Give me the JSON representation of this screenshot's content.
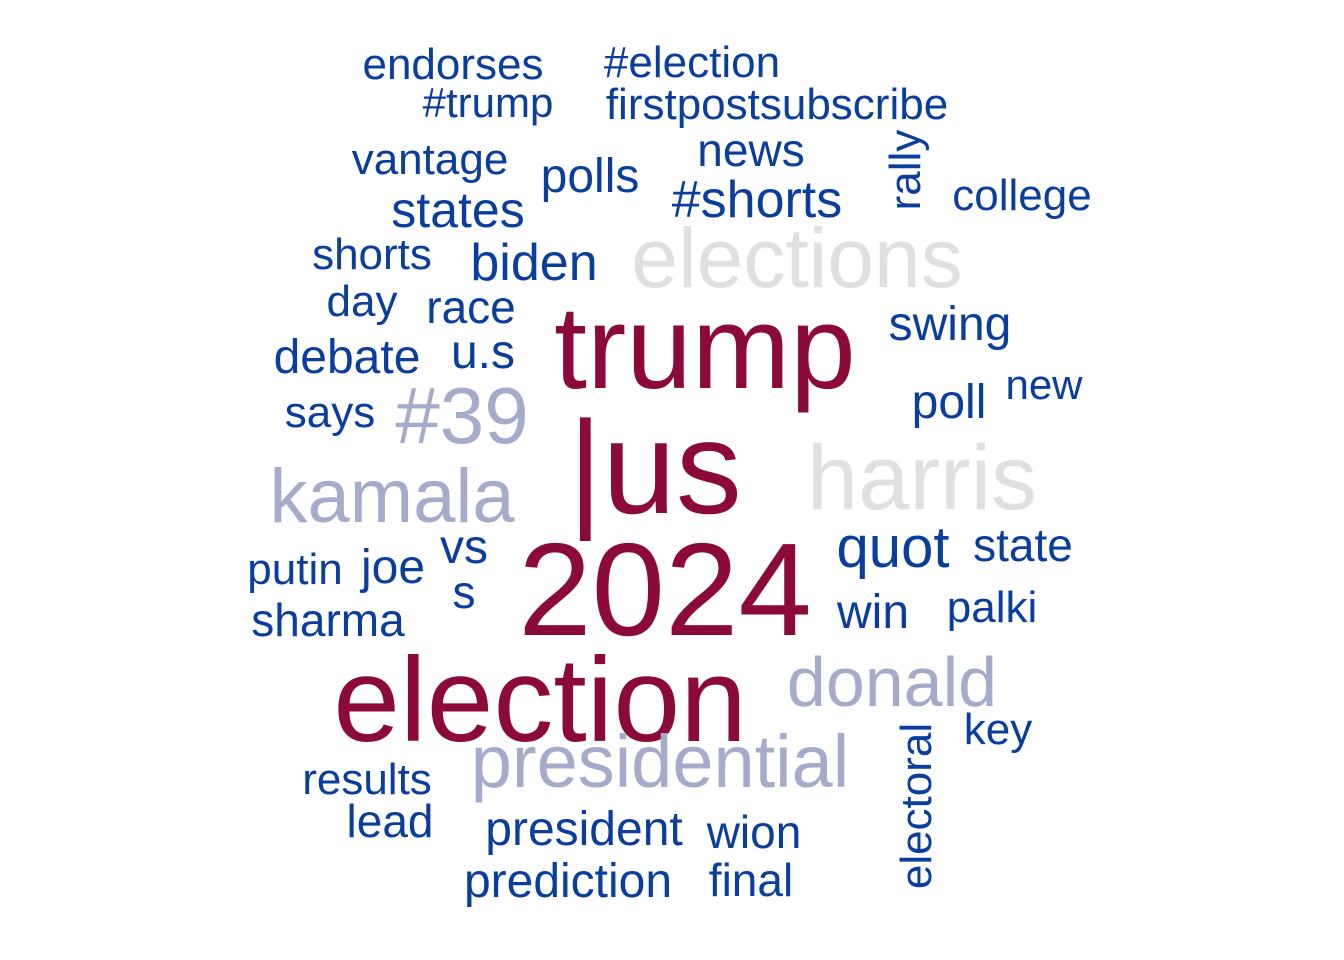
{
  "colors": {
    "top": "#8B0A3A",
    "mid": "#A7ABCB",
    "light": "#E0E0E0",
    "low": "#0A3E9C",
    "background": "#FFFFFF"
  },
  "words": {
    "trump": "trump",
    "us": "|us",
    "y2024": "2024",
    "election": "election",
    "elections": "elections",
    "harris": "harris",
    "hash39": "#39",
    "kamala": "kamala",
    "donald": "donald",
    "presidential": "presidential",
    "endorses": "endorses",
    "hash_election": "#election",
    "hash_trump": "#trump",
    "firstpostsubscribe": "firstpostsubscribe",
    "rally": "rally",
    "vantage": "vantage",
    "news": "news",
    "polls": "polls",
    "hash_shorts": "#shorts",
    "college": "college",
    "states": "states",
    "shorts": "shorts",
    "biden": "biden",
    "day": "day",
    "race": "race",
    "swing": "swing",
    "debate": "debate",
    "u_s": "u.s",
    "new": "new",
    "poll": "poll",
    "says": "says",
    "vs": "vs",
    "s": "s",
    "quot": "quot",
    "state": "state",
    "putin": "putin",
    "joe": "joe",
    "sharma": "sharma",
    "win": "win",
    "palki": "palki",
    "key": "key",
    "electoral": "electoral",
    "results": "results",
    "lead": "lead",
    "president": "president",
    "wion": "wion",
    "prediction": "prediction",
    "final": "final"
  }
}
